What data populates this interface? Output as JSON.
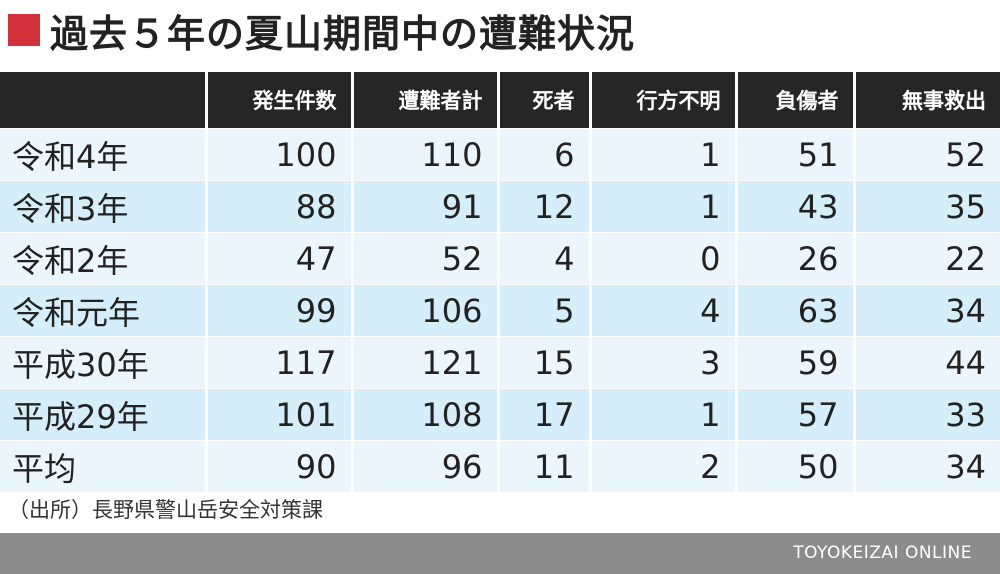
{
  "title": "過去５年の夏山期間中の遭難状況",
  "colors": {
    "accent": "#d2313c",
    "header_bg": "#262626",
    "row_light": "#eaf6fc",
    "row_dark": "#d5eef9",
    "footer_bg": "#8c8c8c"
  },
  "source": "（出所）長野県警山岳安全対策課",
  "brand": "TOYOKEIZAI ONLINE",
  "chart_data": {
    "type": "table",
    "columns": [
      "発生件数",
      "遭難者計",
      "死者",
      "行方不明",
      "負傷者",
      "無事救出"
    ],
    "rows": [
      {
        "label": "令和4年",
        "values": [
          "100",
          "110",
          "6",
          "1",
          "51",
          "52"
        ]
      },
      {
        "label": "令和3年",
        "values": [
          "88",
          "91",
          "12",
          "1",
          "43",
          "35"
        ]
      },
      {
        "label": "令和2年",
        "values": [
          "47",
          "52",
          "4",
          "0",
          "26",
          "22"
        ]
      },
      {
        "label": "令和元年",
        "values": [
          "99",
          "106",
          "5",
          "4",
          "63",
          "34"
        ]
      },
      {
        "label": "平成30年",
        "values": [
          "117",
          "121",
          "15",
          "3",
          "59",
          "44"
        ]
      },
      {
        "label": "平成29年",
        "values": [
          "101",
          "108",
          "17",
          "1",
          "57",
          "33"
        ]
      },
      {
        "label": "平均",
        "values": [
          "90",
          "96",
          "11",
          "2",
          "50",
          "34"
        ]
      }
    ]
  }
}
